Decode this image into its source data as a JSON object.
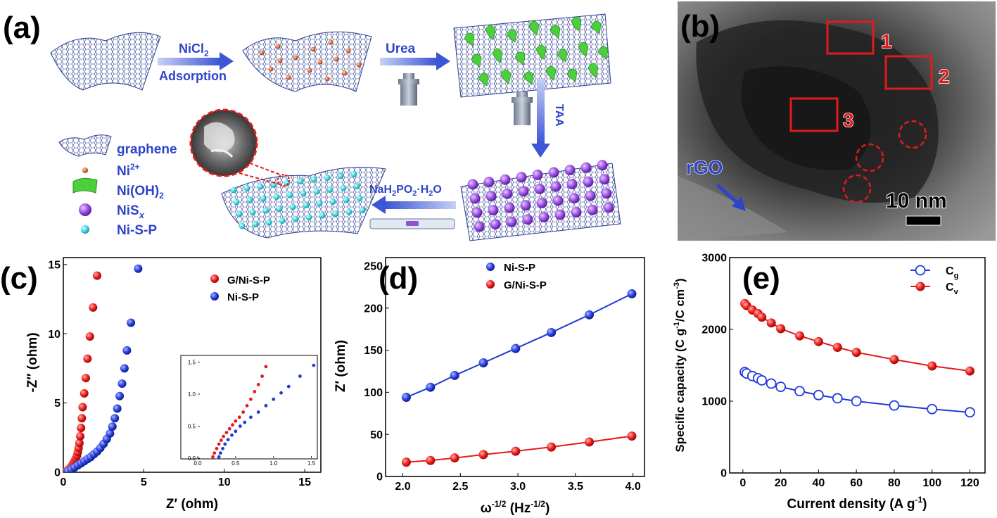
{
  "panel_labels": {
    "a": "(a)",
    "b": "(b)",
    "c": "(c)",
    "d": "(d)",
    "e": "(e)"
  },
  "scheme": {
    "step1_top": "NiCl",
    "step1_sub": "2",
    "step1_bottom": "Adsorption",
    "step2": "Urea",
    "step3": "TAA",
    "step4_main": "NaH",
    "step4_sub1": "2",
    "step4_mid": "PO",
    "step4_sub2": "2",
    "step4_tail": "·H",
    "step4_sub3": "2",
    "step4_end": "O",
    "legend": {
      "graphene": "graphene",
      "ni_ion": "Ni",
      "ni_ion_sup": "2+",
      "nioh": "Ni(OH)",
      "nioh_sub": "2",
      "nis": "NiS",
      "nis_sub": "x",
      "nisp": "Ni-S-P"
    },
    "colors": {
      "ni_ion": "#e0703a",
      "nioh": "#4ccf3c",
      "nis": "#9b4fe0",
      "nisp": "#3fd8e0",
      "arrow": "#3d56d6"
    }
  },
  "tem": {
    "boxes": [
      "1",
      "2",
      "3"
    ],
    "rgo_label": "rGO",
    "scale_label": "10 nm"
  },
  "chart_data": [
    {
      "panel": "c",
      "type": "scatter",
      "xlabel": "Z′ (ohm)",
      "ylabel": "-Z″ (ohm)",
      "xlim": [
        0,
        16
      ],
      "ylim": [
        0,
        15.5
      ],
      "xticks": [
        "0",
        "5",
        "10",
        "15"
      ],
      "yticks": [
        "0",
        "5",
        "10",
        "15"
      ],
      "legend_position": "top-right",
      "series": [
        {
          "name": "G/Ni-S-P",
          "color": "#e31a1c",
          "x": [
            0.15,
            0.25,
            0.35,
            0.45,
            0.55,
            0.62,
            0.7,
            0.78,
            0.85,
            0.9,
            0.95,
            1.0,
            1.05,
            1.1,
            1.15,
            1.2,
            1.3,
            1.4,
            1.5,
            1.65,
            1.85,
            2.1
          ],
          "y": [
            0.05,
            0.12,
            0.22,
            0.35,
            0.5,
            0.65,
            0.82,
            1.0,
            1.2,
            1.45,
            1.75,
            2.1,
            2.6,
            3.2,
            3.9,
            4.7,
            5.7,
            6.8,
            8.2,
            9.8,
            11.9,
            14.2
          ]
        },
        {
          "name": "Ni-S-P",
          "color": "#1f3ad8",
          "x": [
            0.3,
            0.5,
            0.7,
            0.9,
            1.1,
            1.3,
            1.5,
            1.7,
            1.9,
            2.1,
            2.3,
            2.5,
            2.7,
            2.9,
            3.05,
            3.2,
            3.35,
            3.5,
            3.65,
            3.8,
            3.95,
            4.2,
            4.65
          ],
          "y": [
            0.08,
            0.2,
            0.35,
            0.5,
            0.65,
            0.8,
            0.95,
            1.1,
            1.3,
            1.5,
            1.75,
            2.05,
            2.4,
            2.8,
            3.3,
            3.9,
            4.6,
            5.5,
            6.4,
            7.5,
            8.8,
            10.8,
            14.7
          ]
        }
      ],
      "inset": {
        "xlim": [
          0,
          1.55
        ],
        "ylim": [
          0,
          1.55
        ],
        "xticks": [
          "0.0",
          "0.5",
          "1.0",
          "1.5"
        ],
        "yticks": [
          "0.0",
          "0.5",
          "1.0",
          "1.5"
        ],
        "series": [
          {
            "name": "G/Ni-S-P",
            "color": "#e31a1c",
            "x": [
              0.2,
              0.22,
              0.25,
              0.28,
              0.31,
              0.34,
              0.38,
              0.42,
              0.46,
              0.5,
              0.55,
              0.6,
              0.65,
              0.7,
              0.75,
              0.8,
              0.85,
              0.9
            ],
            "y": [
              0.02,
              0.08,
              0.15,
              0.22,
              0.28,
              0.34,
              0.4,
              0.46,
              0.52,
              0.58,
              0.64,
              0.72,
              0.82,
              0.92,
              1.04,
              1.15,
              1.28,
              1.43
            ]
          },
          {
            "name": "Ni-S-P",
            "color": "#1f3ad8",
            "x": [
              0.28,
              0.3,
              0.33,
              0.36,
              0.4,
              0.45,
              0.5,
              0.56,
              0.62,
              0.7,
              0.8,
              0.9,
              1.0,
              1.1,
              1.2,
              1.35,
              1.53
            ],
            "y": [
              0.02,
              0.08,
              0.15,
              0.22,
              0.29,
              0.36,
              0.42,
              0.5,
              0.56,
              0.64,
              0.72,
              0.82,
              0.92,
              1.02,
              1.12,
              1.28,
              1.45
            ]
          }
        ]
      }
    },
    {
      "panel": "d",
      "type": "line",
      "xlabel": "ω",
      "xlabel_sup": "-1/2",
      "xlabel_unit": " (Hz",
      "xlabel_unit_sup": "-1/2",
      "xlabel_end": ")",
      "ylabel": "Z′ (ohm)",
      "xlim": [
        1.85,
        4.1
      ],
      "ylim": [
        0,
        260
      ],
      "xticks": [
        "2.0",
        "2.5",
        "3.0",
        "3.5",
        "4.0"
      ],
      "yticks": [
        "0",
        "50",
        "100",
        "150",
        "200",
        "250"
      ],
      "legend_position": "top-center",
      "series": [
        {
          "name": "Ni-S-P",
          "color": "#1f3ad8",
          "x": [
            2.03,
            2.24,
            2.45,
            2.7,
            2.98,
            3.29,
            3.62,
            3.99
          ],
          "y": [
            94,
            106,
            120,
            135,
            152,
            171,
            192,
            217
          ]
        },
        {
          "name": "G/Ni-S-P",
          "color": "#e31a1c",
          "x": [
            2.03,
            2.24,
            2.45,
            2.7,
            2.98,
            3.29,
            3.62,
            3.99
          ],
          "y": [
            17,
            19,
            22,
            26,
            30,
            35,
            41,
            48
          ]
        }
      ]
    },
    {
      "panel": "e",
      "type": "line",
      "xlabel": "Current density (A g",
      "xlabel_sup": "-1",
      "xlabel_end": ")",
      "ylabel": "Specific capacity (C g",
      "ylabel_sup1": "-1",
      "ylabel_mid": "/C cm",
      "ylabel_sup2": "-3",
      "ylabel_end": ")",
      "xlim": [
        -7,
        128
      ],
      "ylim": [
        0,
        3000
      ],
      "xticks": [
        "0",
        "20",
        "40",
        "60",
        "80",
        "100",
        "120"
      ],
      "yticks": [
        "0",
        "1000",
        "2000",
        "3000"
      ],
      "legend_position": "top-right",
      "series": [
        {
          "name": "C",
          "sub": "g",
          "color": "#1f3ad8",
          "marker": "open",
          "x": [
            1,
            2,
            5,
            8,
            10,
            15,
            20,
            30,
            40,
            50,
            60,
            80,
            100,
            120
          ],
          "y": [
            1405,
            1385,
            1350,
            1320,
            1290,
            1245,
            1200,
            1140,
            1085,
            1040,
            1000,
            940,
            890,
            845
          ]
        },
        {
          "name": "C",
          "sub": "v",
          "color": "#e31a1c",
          "marker": "filled",
          "x": [
            1,
            2,
            5,
            8,
            10,
            15,
            20,
            30,
            40,
            50,
            60,
            80,
            100,
            120
          ],
          "y": [
            2360,
            2330,
            2270,
            2220,
            2170,
            2090,
            2010,
            1910,
            1830,
            1750,
            1680,
            1580,
            1490,
            1420
          ]
        }
      ]
    }
  ]
}
